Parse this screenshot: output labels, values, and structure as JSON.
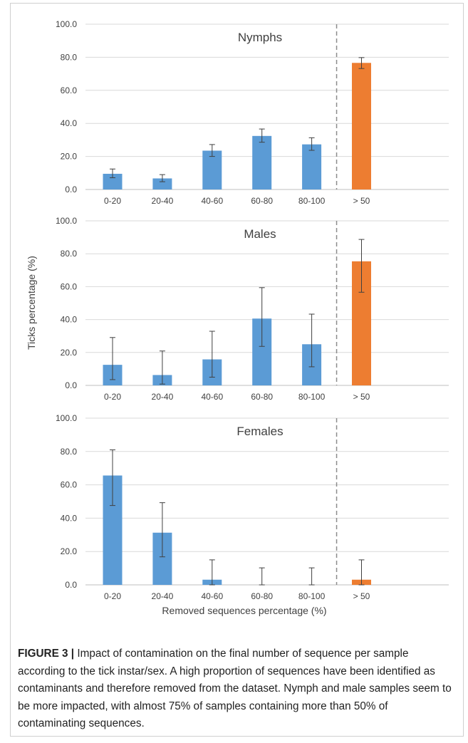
{
  "figure": {
    "ylabel": "Ticks percentage (%)",
    "xlabel": "Removed sequences percentage (%)"
  },
  "chart_data": [
    {
      "type": "bar",
      "title": "Nymphs",
      "categories": [
        "0-20",
        "20-40",
        "40-60",
        "60-80",
        "80-100",
        "> 50"
      ],
      "values": [
        9.5,
        6.7,
        23.5,
        32.4,
        27.3,
        76.6
      ],
      "error_low": [
        7.1,
        4.7,
        20.0,
        28.6,
        23.7,
        73.2
      ],
      "error_high": [
        12.4,
        9.0,
        27.2,
        36.6,
        31.3,
        79.8
      ],
      "bar_colors": [
        "#5b9bd5",
        "#5b9bd5",
        "#5b9bd5",
        "#5b9bd5",
        "#5b9bd5",
        "#ed7d31"
      ],
      "ylim": [
        0,
        100
      ],
      "yticks": [
        "0.0",
        "20.0",
        "40.0",
        "60.0",
        "80.0",
        "100.0"
      ],
      "separator_after_category": "80-100",
      "grid": true
    },
    {
      "type": "bar",
      "title": "Males",
      "categories": [
        "0-20",
        "20-40",
        "40-60",
        "60-80",
        "80-100",
        "> 50"
      ],
      "values": [
        12.5,
        6.3,
        15.8,
        40.6,
        25.0,
        75.4
      ],
      "error_low": [
        3.5,
        0.8,
        5.0,
        23.7,
        11.3,
        56.6
      ],
      "error_high": [
        29.1,
        20.9,
        32.9,
        59.4,
        43.3,
        88.7
      ],
      "bar_colors": [
        "#5b9bd5",
        "#5b9bd5",
        "#5b9bd5",
        "#5b9bd5",
        "#5b9bd5",
        "#ed7d31"
      ],
      "ylim": [
        0,
        100
      ],
      "yticks": [
        "0.0",
        "20.0",
        "40.0",
        "60.0",
        "80.0",
        "100.0"
      ],
      "separator_after_category": "80-100",
      "grid": true
    },
    {
      "type": "bar",
      "title": "Females",
      "categories": [
        "0-20",
        "20-40",
        "40-60",
        "60-80",
        "80-100",
        "> 50"
      ],
      "values": [
        65.6,
        31.3,
        3.1,
        0,
        0,
        3.1
      ],
      "error_low": [
        47.6,
        16.8,
        0,
        0,
        0,
        0
      ],
      "error_high": [
        81.0,
        49.3,
        15.0,
        10.2,
        10.2,
        15.0
      ],
      "bar_colors": [
        "#5b9bd5",
        "#5b9bd5",
        "#5b9bd5",
        "#5b9bd5",
        "#5b9bd5",
        "#ed7d31"
      ],
      "ylim": [
        0,
        100
      ],
      "yticks": [
        "0.0",
        "20.0",
        "40.0",
        "60.0",
        "80.0",
        "100.0"
      ],
      "separator_after_category": "80-100",
      "grid": true
    }
  ],
  "caption": {
    "label": "FIGURE 3 |",
    "text": " Impact of contamination on the final number of sequence per sample according to the tick instar/sex. A high proportion of sequences have been identified as contaminants and therefore removed from the dataset. Nymph and male samples seem to be more impacted, with almost 75% of samples containing more than 50% of contaminating sequences."
  }
}
